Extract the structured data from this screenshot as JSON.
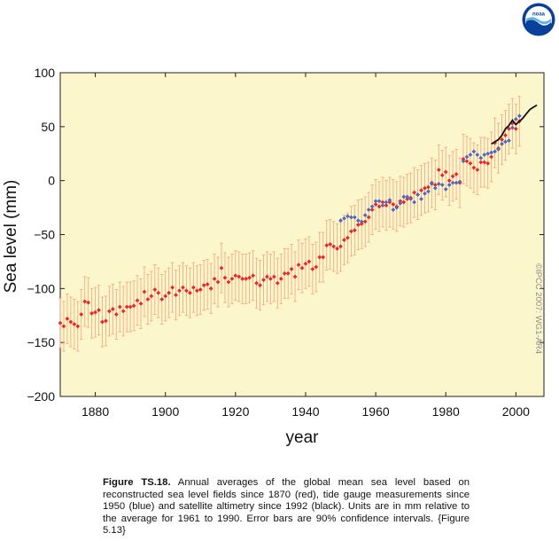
{
  "logo": {
    "text": "noaa",
    "icon": "noaa-logo-icon",
    "colors": [
      "#0a3f9a",
      "#5fb4e6",
      "#ffffff"
    ]
  },
  "caption": {
    "label": "Figure TS.18.",
    "text": "Annual averages of the global mean sea level based on reconstructed sea level fields since 1870 (red), tide gauge measurements since 1950 (blue) and satellite altimetry since 1992 (black). Units are in mm relative to the average for 1961 to 1990. Error bars are 90% confidence intervals. {Figure 5.13}"
  },
  "chart_data": {
    "type": "scatter",
    "xlabel": "year",
    "ylabel": "Sea level (mm)",
    "xlim": [
      1870,
      2008
    ],
    "ylim": [
      -200,
      100
    ],
    "xticks": [
      1880,
      1900,
      1920,
      1940,
      1960,
      1980,
      2000
    ],
    "yticks": [
      -200,
      -150,
      -100,
      -50,
      0,
      50,
      100
    ],
    "watermark": "©IPCC 2007: WG1-AR4",
    "background": "#fbf6cc",
    "colors": {
      "red": "#e8262b",
      "blue": "#5467b8",
      "black": "#111111",
      "errorbar": "#f3ac84"
    },
    "series": [
      {
        "color": "red",
        "marker": "point-with-errorbar",
        "error_halfwidth": 23,
        "x": [
          1870,
          1871,
          1872,
          1873,
          1874,
          1875,
          1876,
          1877,
          1878,
          1879,
          1880,
          1881,
          1882,
          1883,
          1884,
          1885,
          1886,
          1887,
          1888,
          1889,
          1890,
          1891,
          1892,
          1893,
          1894,
          1895,
          1896,
          1897,
          1898,
          1899,
          1900,
          1901,
          1902,
          1903,
          1904,
          1905,
          1906,
          1907,
          1908,
          1909,
          1910,
          1911,
          1912,
          1913,
          1914,
          1915,
          1916,
          1917,
          1918,
          1919,
          1920,
          1921,
          1922,
          1923,
          1924,
          1925,
          1926,
          1927,
          1928,
          1929,
          1930,
          1931,
          1932,
          1933,
          1934,
          1935,
          1936,
          1937,
          1938,
          1939,
          1940,
          1941,
          1942,
          1943,
          1944,
          1945,
          1946,
          1947,
          1948,
          1949,
          1950,
          1951,
          1952,
          1953,
          1954,
          1955,
          1956,
          1957,
          1958,
          1959,
          1960,
          1961,
          1962,
          1963,
          1964,
          1965,
          1966,
          1967,
          1968,
          1969,
          1970,
          1971,
          1972,
          1973,
          1974,
          1975,
          1976,
          1977,
          1978,
          1979,
          1980,
          1981,
          1982,
          1983,
          1984,
          1985,
          1986,
          1987,
          1988,
          1989,
          1990,
          1991,
          1992,
          1993,
          1994,
          1995,
          1996,
          1997,
          1998,
          1999,
          2000,
          2001
        ],
        "y": [
          -132,
          -135,
          -128,
          -131,
          -133,
          -135,
          -124,
          -112,
          -113,
          -123,
          -122,
          -120,
          -131,
          -130,
          -121,
          -119,
          -124,
          -117,
          -121,
          -117,
          -117,
          -116,
          -111,
          -114,
          -103,
          -110,
          -107,
          -101,
          -104,
          -110,
          -107,
          -104,
          -99,
          -106,
          -102,
          -99,
          -102,
          -104,
          -99,
          -102,
          -101,
          -97,
          -96,
          -100,
          -91,
          -94,
          -81,
          -90,
          -94,
          -91,
          -88,
          -89,
          -91,
          -91,
          -90,
          -88,
          -95,
          -97,
          -92,
          -89,
          -91,
          -89,
          -95,
          -91,
          -86,
          -86,
          -82,
          -89,
          -78,
          -81,
          -77,
          -75,
          -82,
          -80,
          -71,
          -71,
          -60,
          -59,
          -61,
          -63,
          -61,
          -55,
          -53,
          -47,
          -46,
          -41,
          -40,
          -38,
          -34,
          -27,
          -22,
          -24,
          -20,
          -23,
          -20,
          -22,
          -24,
          -19,
          -20,
          -17,
          -16,
          -11,
          -13,
          -9,
          -7,
          -6,
          -2,
          -4,
          10,
          5,
          8,
          0,
          4,
          6,
          -2,
          20,
          18,
          16,
          12,
          10,
          17,
          17,
          16,
          22,
          35,
          30,
          38,
          42,
          48,
          53,
          48,
          55
        ]
      },
      {
        "color": "blue",
        "marker": "point",
        "x": [
          1950,
          1951,
          1952,
          1953,
          1954,
          1955,
          1956,
          1957,
          1958,
          1959,
          1960,
          1961,
          1962,
          1963,
          1964,
          1965,
          1966,
          1967,
          1968,
          1969,
          1970,
          1971,
          1972,
          1973,
          1974,
          1975,
          1976,
          1977,
          1978,
          1979,
          1980,
          1981,
          1982,
          1983,
          1984,
          1985,
          1986,
          1987,
          1988,
          1989,
          1990,
          1991,
          1992,
          1993,
          1994,
          1995,
          1996,
          1997,
          1998,
          1999,
          2000,
          2001
        ],
        "y": [
          -37,
          -35,
          -33,
          -34,
          -34,
          -37,
          -38,
          -32,
          -27,
          -24,
          -19,
          -19,
          -23,
          -20,
          -18,
          -27,
          -25,
          -21,
          -15,
          -15,
          -17,
          -20,
          -13,
          -17,
          -12,
          -10,
          -3,
          -7,
          -3,
          -4,
          -8,
          -4,
          -2,
          -2,
          -1,
          18,
          22,
          24,
          27,
          24,
          21,
          24,
          25,
          26,
          27,
          29,
          34,
          36,
          37,
          49,
          57,
          60
        ]
      },
      {
        "color": "black",
        "marker": "line",
        "x": [
          1993,
          1994,
          1995,
          1996,
          1997,
          1998,
          1999,
          2000,
          2001,
          2002,
          2003,
          2004,
          2005,
          2006
        ],
        "y": [
          34,
          36,
          38,
          42,
          48,
          51,
          56,
          52,
          55,
          58,
          62,
          66,
          68,
          70
        ]
      }
    ]
  }
}
